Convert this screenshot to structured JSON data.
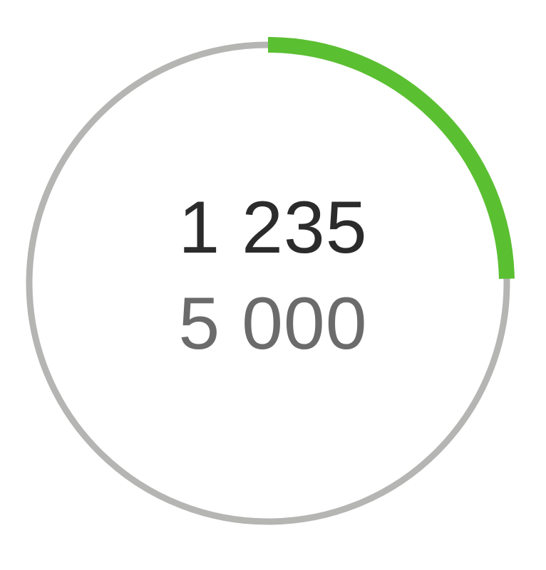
{
  "progress": {
    "current_label": "1 235",
    "goal_label": "5 000",
    "current": 1235,
    "goal": 5000,
    "fraction": 0.247
  },
  "colors": {
    "track": "#b5b5b3",
    "fill": "#5bbf32",
    "current_text": "#2b2b2b",
    "goal_text": "#6b6b6b",
    "background": "#ffffff"
  }
}
